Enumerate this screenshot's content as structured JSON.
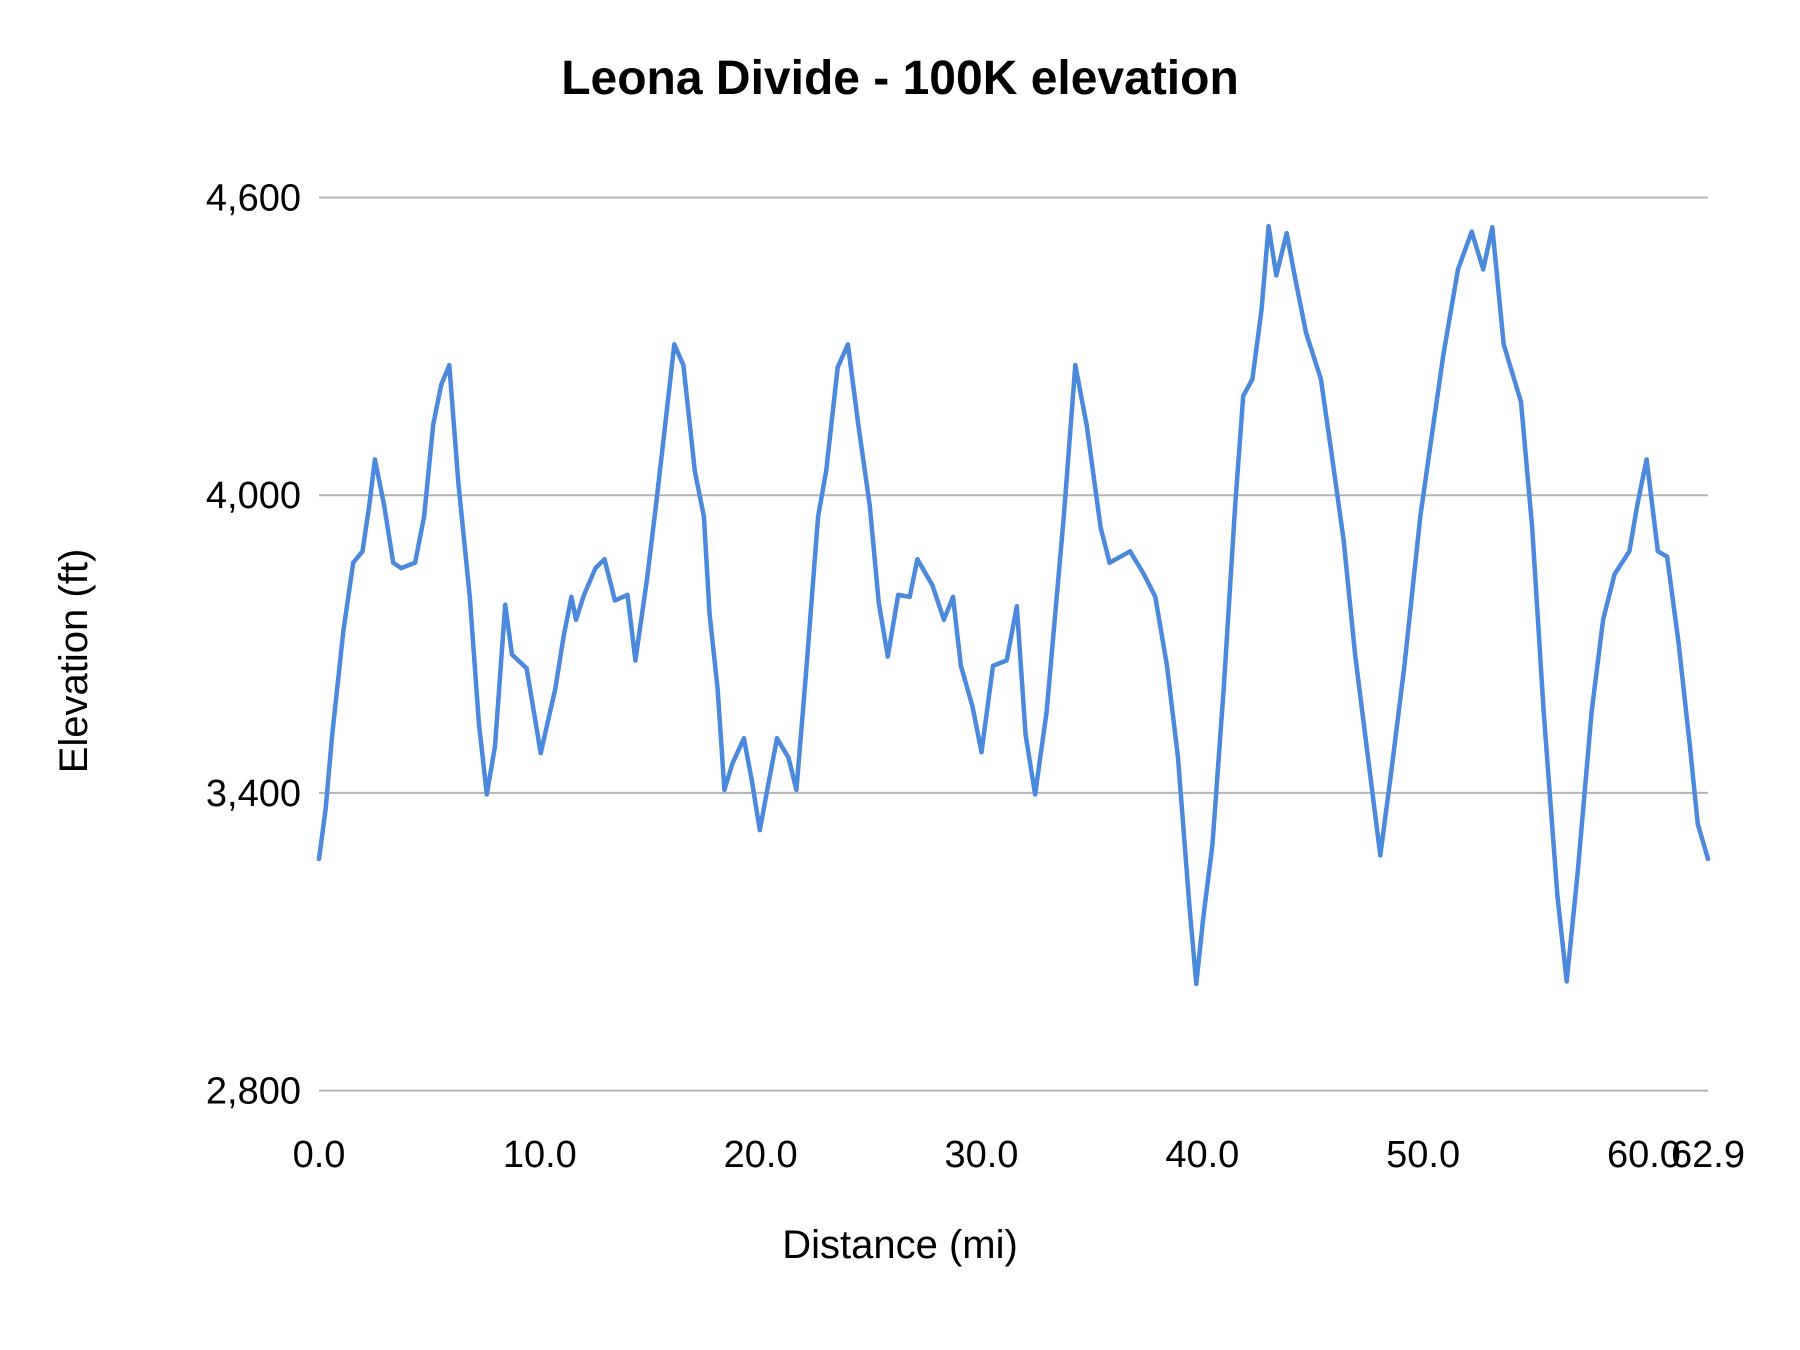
{
  "chart_data": {
    "type": "line",
    "title": "Leona Divide - 100K elevation",
    "xlabel": "Distance (mi)",
    "ylabel": "Elevation (ft)",
    "xlim": [
      0,
      62.9
    ],
    "ylim": [
      2800,
      4600
    ],
    "x_ticks": [
      "0.0",
      "10.0",
      "20.0",
      "30.0",
      "40.0",
      "50.0",
      "60.0",
      "62.9"
    ],
    "x_tick_values": [
      0,
      10,
      20,
      30,
      40,
      50,
      60,
      62.9
    ],
    "y_ticks": [
      "2,800",
      "3,400",
      "4,000",
      "4,600"
    ],
    "y_tick_values": [
      2800,
      3400,
      4000,
      4600
    ],
    "grid": "horizontal",
    "legend": "none",
    "line_color": "#4a89dc",
    "series": [
      {
        "x": [
          0,
          0.3,
          0.6,
          1.1,
          1.55,
          1.97,
          2.28,
          2.53,
          2.95,
          3.36,
          3.72,
          4.35,
          4.76,
          5.17,
          5.54,
          5.9,
          6.31,
          6.83,
          7.24,
          7.6,
          7.97,
          8.43,
          8.74,
          9.4,
          9.73,
          10.04,
          10.7,
          11.07,
          11.43,
          11.64,
          12.0,
          12.52,
          12.93,
          13.4,
          13.97,
          14.33,
          14.85,
          15.26,
          15.62,
          16.09,
          16.5,
          17.02,
          17.43,
          17.69,
          18.05,
          18.36,
          18.72,
          19.24,
          19.6,
          19.96,
          20.38,
          20.74,
          21.26,
          21.62,
          22.04,
          22.6,
          22.97,
          23.49,
          23.95,
          24.42,
          24.94,
          25.35,
          25.76,
          26.23,
          26.75,
          27.1,
          27.78,
          28.3,
          28.71,
          29.07,
          29.59,
          30.0,
          30.52,
          31.14,
          31.6,
          32.0,
          32.43,
          32.95,
          33.73,
          34.25,
          34.76,
          35.4,
          35.8,
          36.73,
          37.35,
          37.87,
          38.4,
          38.9,
          39.42,
          39.73,
          40.04,
          40.46,
          40.97,
          41.49,
          41.85,
          42.27,
          42.68,
          43.0,
          43.35,
          43.82,
          44.18,
          44.7,
          45.37,
          45.89,
          46.4,
          46.92,
          47.44,
          48.06,
          48.57,
          49.15,
          49.87,
          50.39,
          50.91,
          51.58,
          52.2,
          52.72,
          53.13,
          53.65,
          54.43,
          54.94,
          55.46,
          56.08,
          56.5,
          57.0,
          57.63,
          58.15,
          58.67,
          59.34,
          59.7,
          60.12,
          60.63,
          61.05,
          61.57,
          62.08,
          62.44,
          62.9
        ],
        "y": [
          3267,
          3367,
          3517,
          3725,
          3864,
          3887,
          3980,
          4072,
          3980,
          3864,
          3853,
          3864,
          3957,
          4142,
          4223,
          4262,
          4026,
          3795,
          3540,
          3397,
          3494,
          3779,
          3679,
          3651,
          3563,
          3480,
          3610,
          3714,
          3795,
          3749,
          3799,
          3853,
          3871,
          3788,
          3799,
          3667,
          3829,
          3980,
          4119,
          4304,
          4262,
          4049,
          3957,
          3760,
          3610,
          3406,
          3459,
          3510,
          3425,
          3325,
          3425,
          3510,
          3471,
          3406,
          3633,
          3957,
          4049,
          4258,
          4304,
          4142,
          3980,
          3783,
          3675,
          3799,
          3795,
          3871,
          3818,
          3749,
          3795,
          3656,
          3575,
          3482,
          3656,
          3667,
          3776,
          3517,
          3397,
          3563,
          3957,
          4262,
          4142,
          3934,
          3864,
          3887,
          3841,
          3795,
          3656,
          3471,
          3170,
          3015,
          3147,
          3297,
          3610,
          3980,
          4200,
          4234,
          4373,
          4542,
          4443,
          4528,
          4443,
          4327,
          4234,
          4072,
          3910,
          3679,
          3494,
          3274,
          3448,
          3656,
          3957,
          4119,
          4281,
          4455,
          4531,
          4455,
          4540,
          4304,
          4188,
          3934,
          3563,
          3193,
          3020,
          3240,
          3563,
          3749,
          3841,
          3887,
          3980,
          4072,
          3887,
          3876,
          3702,
          3494,
          3337,
          3267
        ]
      }
    ]
  }
}
